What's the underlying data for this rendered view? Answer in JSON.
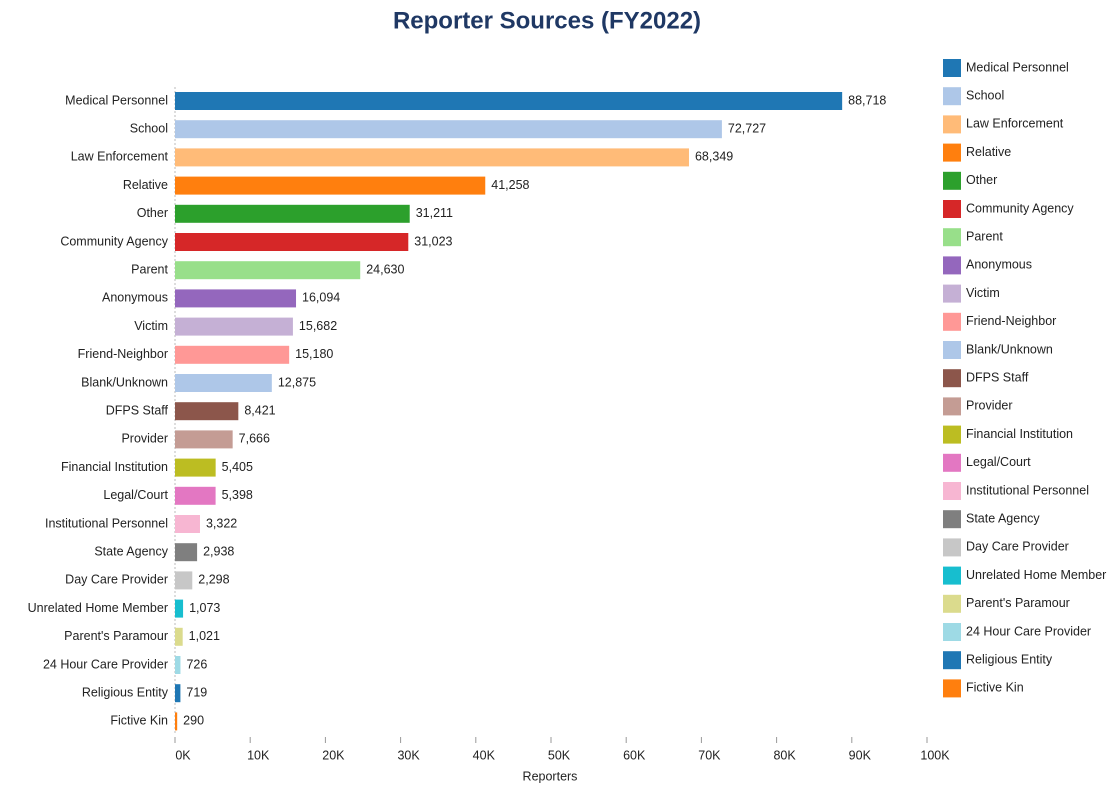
{
  "chart_data": {
    "type": "barh",
    "title": "Reporter Sources (FY2022)",
    "xlabel": "Reporters",
    "categories": [
      "Medical Personnel",
      "School",
      "Law Enforcement",
      "Relative",
      "Other",
      "Community Agency",
      "Parent",
      "Anonymous",
      "Victim",
      "Friend-Neighbor",
      "Blank/Unknown",
      "DFPS Staff",
      "Provider",
      "Financial Institution",
      "Legal/Court",
      "Institutional Personnel",
      "State Agency",
      "Day Care Provider",
      "Unrelated Home Member",
      "Parent's Paramour",
      "24 Hour Care Provider",
      "Religious Entity",
      "Fictive Kin"
    ],
    "values": [
      88718,
      72727,
      68349,
      41258,
      31211,
      31023,
      24630,
      16094,
      15682,
      15180,
      12875,
      8421,
      7666,
      5405,
      5398,
      3322,
      2938,
      2298,
      1073,
      1021,
      726,
      719,
      290
    ],
    "value_labels": [
      "88,718",
      "72,727",
      "68,349",
      "41,258",
      "31,211",
      "31,023",
      "24,630",
      "16,094",
      "15,682",
      "15,180",
      "12,875",
      "8,421",
      "7,666",
      "5,405",
      "5,398",
      "3,322",
      "2,938",
      "2,298",
      "1,073",
      "1,021",
      "726",
      "719",
      "290"
    ],
    "colors": [
      "#1f77b4",
      "#aec7e8",
      "#ffbb78",
      "#ff7f0e",
      "#2ca02c",
      "#d62728",
      "#98df8a",
      "#9467bd",
      "#c5b0d5",
      "#ff9896",
      "#aec7e8",
      "#8c564b",
      "#c49c94",
      "#bcbd22",
      "#e377c2",
      "#f7b6d2",
      "#7f7f7f",
      "#c7c7c7",
      "#17becf",
      "#dbdb8d",
      "#9edae5",
      "#1f77b4",
      "#ff7f0e"
    ],
    "xlim": [
      0,
      100000
    ],
    "xticks": [
      {
        "value": 0,
        "label": "0K"
      },
      {
        "value": 10000,
        "label": "10K"
      },
      {
        "value": 20000,
        "label": "20K"
      },
      {
        "value": 30000,
        "label": "30K"
      },
      {
        "value": 40000,
        "label": "40K"
      },
      {
        "value": 50000,
        "label": "50K"
      },
      {
        "value": 60000,
        "label": "60K"
      },
      {
        "value": 70000,
        "label": "70K"
      },
      {
        "value": 80000,
        "label": "80K"
      },
      {
        "value": 90000,
        "label": "90K"
      },
      {
        "value": 100000,
        "label": "100K"
      }
    ],
    "legend": "right"
  }
}
